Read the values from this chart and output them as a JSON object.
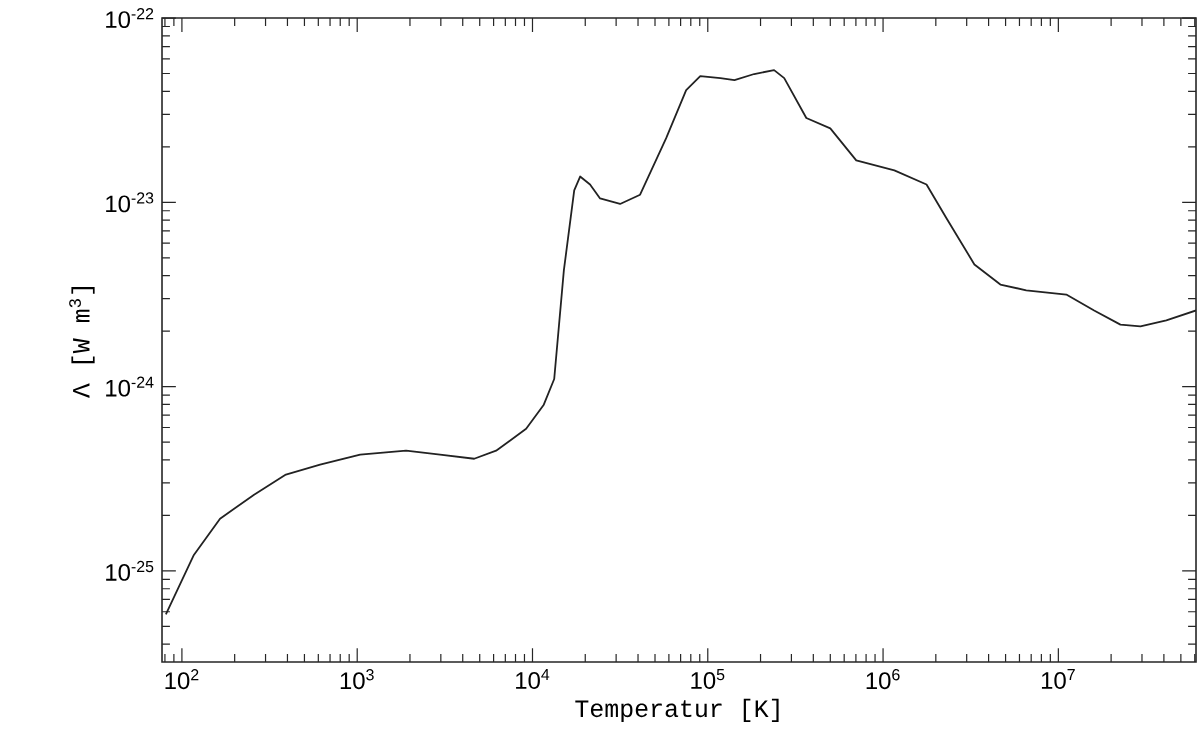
{
  "chart_data": {
    "type": "line",
    "xlabel": "Temperatur [K]",
    "ylabel": "Λ [W m$^{3}$]",
    "log": "xy",
    "grid": false,
    "marker": "none",
    "line_style": "solid",
    "xlim": [
      77,
      61000000
    ],
    "ylim": [
      3.2e-26,
      1e-22
    ],
    "xticks": [
      {
        "value": 100,
        "label": "10$^{2}$"
      },
      {
        "value": 1000,
        "label": "10$^{3}$"
      },
      {
        "value": 10000,
        "label": "10$^{4}$"
      },
      {
        "value": 100000,
        "label": "10$^{5}$"
      },
      {
        "value": 1000000,
        "label": "10$^{6}$"
      },
      {
        "value": 10000000,
        "label": "10$^{7}$"
      }
    ],
    "yticks": [
      {
        "value": 1e-25,
        "label": "10$^{-25}$"
      },
      {
        "value": 1e-24,
        "label": "10$^{-24}$"
      },
      {
        "value": 1e-23,
        "label": "10$^{-23}$"
      },
      {
        "value": 1e-22,
        "label": "10$^{-22}$"
      }
    ],
    "series": [
      {
        "color": "#222222",
        "x": [
          81,
          117,
          165,
          258,
          392,
          614,
          1040,
          1900,
          2970,
          4650,
          6200,
          9200,
          11600,
          13300,
          15100,
          17300,
          18700,
          21300,
          24300,
          31600,
          41100,
          57900,
          75300,
          90600,
          118000,
          142000,
          184000,
          239000,
          273000,
          365000,
          500000,
          703000,
          1160000,
          1770000,
          2300000,
          3320000,
          4670000,
          6560000,
          11100000,
          16000000,
          22600000,
          29400000,
          41300000,
          61000000
        ],
        "values": [
          5.8e-26,
          1.22e-25,
          1.92e-25,
          2.59e-25,
          3.33e-25,
          3.77e-25,
          4.27e-25,
          4.49e-25,
          4.27e-25,
          4.06e-25,
          4.49e-25,
          5.9e-25,
          7.98e-25,
          1.1e-24,
          4.27e-24,
          1.16e-23,
          1.38e-23,
          1.25e-23,
          1.05e-23,
          9.8e-24,
          1.1e-23,
          2.23e-23,
          4.06e-23,
          4.84e-23,
          4.72e-23,
          4.6e-23,
          4.97e-23,
          5.22e-23,
          4.72e-23,
          2.87e-23,
          2.52e-23,
          1.69e-23,
          1.49e-23,
          1.25e-23,
          8.2e-24,
          4.6e-24,
          3.58e-24,
          3.33e-24,
          3.16e-24,
          2.59e-24,
          2.17e-24,
          2.12e-24,
          2.29e-24,
          2.59e-24
        ]
      }
    ]
  }
}
